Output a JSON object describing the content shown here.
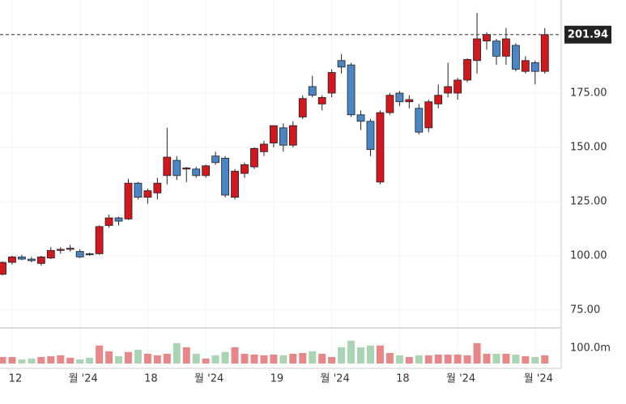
{
  "chart_data": {
    "type": "candlestick",
    "categories": [
      null,
      "12",
      null,
      null,
      null,
      null,
      null,
      null,
      "월 '24",
      null,
      null,
      null,
      null,
      null,
      null,
      "18",
      null,
      null,
      null,
      null,
      null,
      "월 '24",
      null,
      null,
      null,
      null,
      null,
      null,
      "19",
      null,
      null,
      null,
      null,
      null,
      "월 '24",
      null,
      null,
      null,
      null,
      null,
      null,
      "18",
      null,
      null,
      null,
      null,
      null,
      "월 '24",
      null,
      null,
      null,
      null,
      null,
      null,
      null,
      "월 '24",
      null
    ],
    "open": [
      91.5,
      97,
      99.5,
      98.5,
      96.5,
      99,
      102.5,
      103,
      102,
      101,
      101,
      114,
      117.5,
      117,
      133.5,
      127,
      129,
      137,
      144,
      140,
      140,
      137,
      146,
      145,
      127,
      138,
      141,
      148,
      152,
      159,
      151,
      164,
      178,
      170,
      175,
      190,
      188,
      165,
      162,
      134,
      166,
      175,
      171,
      168,
      159,
      170,
      175,
      175,
      181,
      190,
      199,
      199,
      192,
      197,
      185,
      189,
      185
    ],
    "high": [
      97.5,
      100,
      100.5,
      99.5,
      100,
      104,
      104,
      105,
      103,
      101.5,
      114,
      119,
      118,
      135.5,
      134,
      131,
      136,
      159,
      146,
      141,
      141,
      142,
      148,
      146,
      140,
      143,
      150,
      153,
      160,
      161,
      162,
      174,
      183,
      174,
      186,
      193,
      189,
      167,
      163,
      167,
      175,
      176,
      174,
      170,
      172,
      179,
      189,
      182,
      191,
      212,
      203,
      200,
      205,
      198,
      192,
      190,
      205
    ],
    "low": [
      91,
      96,
      98,
      97,
      95.5,
      98.5,
      101,
      102,
      99,
      100,
      100.5,
      113,
      114,
      116.5,
      126,
      124,
      126,
      133,
      135,
      134,
      136,
      136,
      142,
      127,
      126,
      136,
      140,
      146,
      150,
      148,
      150,
      163,
      173,
      167,
      173,
      184,
      164,
      158,
      146,
      133,
      165,
      169,
      168,
      156,
      157,
      168,
      173,
      172,
      180,
      184,
      195,
      188,
      188,
      185,
      184,
      179,
      184
    ],
    "close": [
      97,
      99.5,
      98.5,
      97.8,
      99.5,
      102.5,
      103,
      103.5,
      99.5,
      100.5,
      113.5,
      117.5,
      116,
      133.5,
      127,
      130,
      133.5,
      145.5,
      137,
      140.5,
      137,
      141.5,
      143,
      128,
      139,
      142,
      149.5,
      151.5,
      160,
      151,
      160,
      172.5,
      174,
      173,
      184.5,
      187,
      165,
      162,
      149,
      166,
      174,
      171,
      172,
      157,
      171,
      174,
      178,
      181,
      190.5,
      200,
      202,
      192,
      200,
      186,
      190,
      185,
      201.94
    ],
    "up_color": "#d0181e",
    "down_color": "#4a86c5",
    "ylim": [
      66.8,
      217.9
    ],
    "yticks": [
      {
        "value": 75,
        "label": "75.00"
      },
      {
        "value": 100,
        "label": "100.00"
      },
      {
        "value": 125,
        "label": "125.00"
      },
      {
        "value": 150,
        "label": "150.00"
      },
      {
        "value": 175,
        "label": "175.00"
      }
    ],
    "grid": true,
    "volume": {
      "values": [
        42,
        42,
        26,
        32,
        42,
        47,
        53,
        37,
        26,
        37,
        116,
        79,
        47,
        74,
        89,
        63,
        53,
        63,
        132,
        105,
        63,
        32,
        53,
        74,
        105,
        63,
        58,
        53,
        58,
        53,
        63,
        68,
        79,
        63,
        42,
        105,
        147,
        105,
        116,
        116,
        68,
        53,
        42,
        53,
        53,
        58,
        58,
        58,
        53,
        132,
        63,
        63,
        63,
        58,
        47,
        42,
        53
      ],
      "ylim": [
        0,
        230
      ],
      "yticks": [
        {
          "value": 100,
          "label": "100.0m"
        }
      ],
      "up_color": "#e8878a",
      "down_color": "#a9d5b5"
    }
  }
}
